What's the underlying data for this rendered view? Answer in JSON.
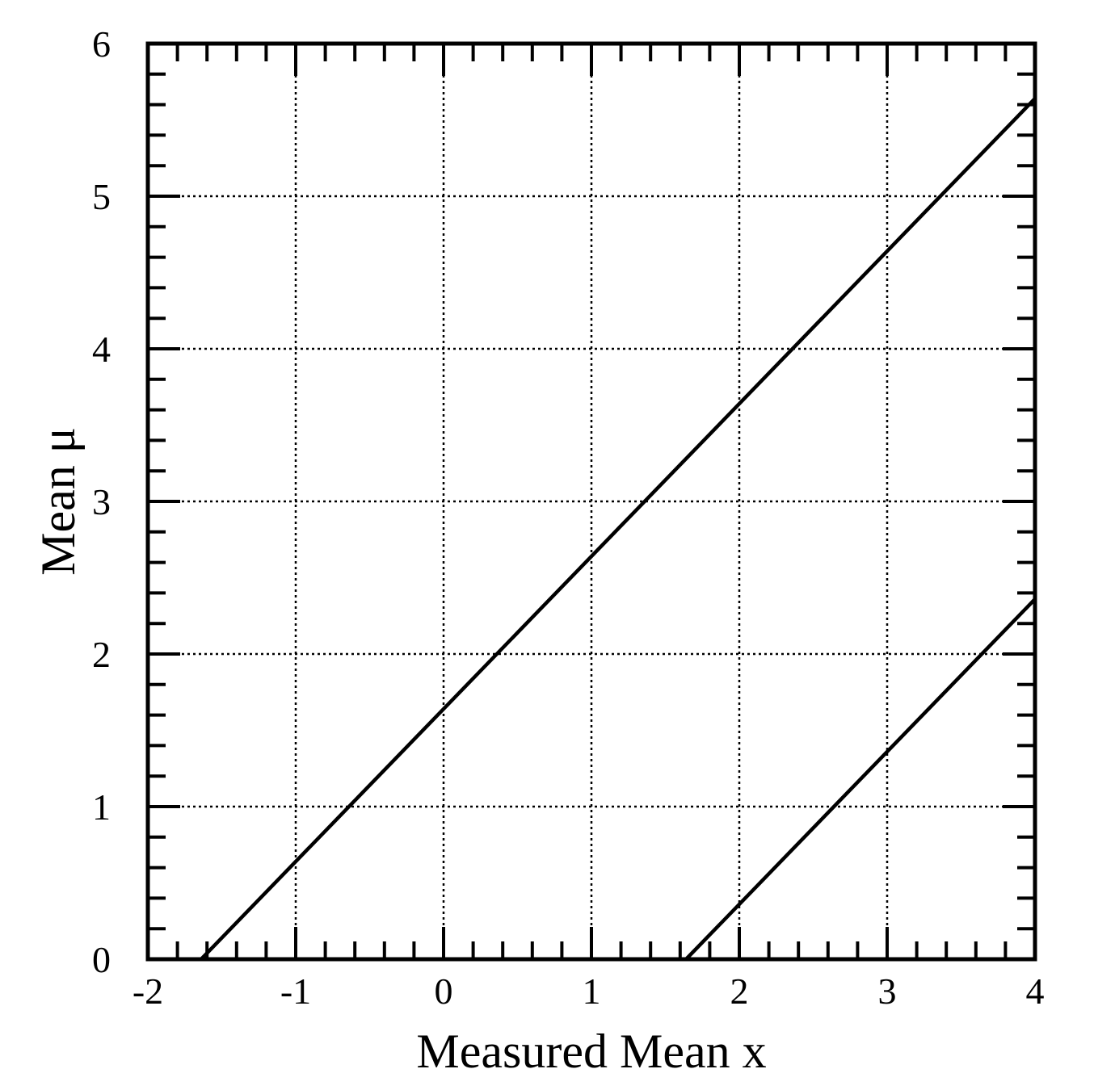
{
  "chart_data": {
    "type": "line",
    "title": "",
    "xlabel": "Measured Mean x",
    "ylabel": "Mean μ",
    "xlim": [
      -2,
      4
    ],
    "ylim": [
      0,
      6
    ],
    "x_ticks": [
      "-2",
      "-1",
      "0",
      "1",
      "2",
      "3",
      "4"
    ],
    "y_ticks": [
      "0",
      "1",
      "2",
      "3",
      "4",
      "5",
      "6"
    ],
    "x_minor_step": 0.2,
    "y_minor_step": 0.2,
    "grid": true,
    "legend": "none",
    "line_color": "#000000",
    "series": [
      {
        "x": [
          -1.64,
          4.0
        ],
        "y": [
          0.0,
          5.64
        ]
      },
      {
        "x": [
          1.64,
          4.0
        ],
        "y": [
          0.0,
          2.36
        ]
      }
    ]
  }
}
